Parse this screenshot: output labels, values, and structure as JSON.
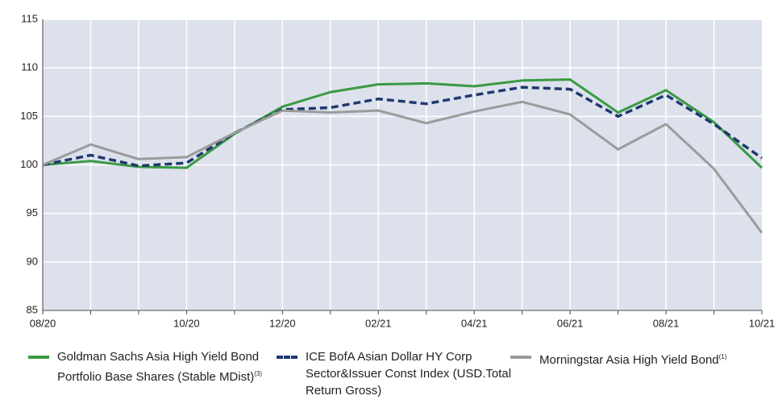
{
  "chart_data": {
    "type": "line",
    "categories": [
      "08/20",
      null,
      null,
      "10/20",
      null,
      "12/20",
      null,
      "02/21",
      null,
      "04/21",
      null,
      "06/21",
      null,
      "08/21",
      null,
      "10/21"
    ],
    "ylim": [
      85,
      115
    ],
    "yticks": [
      85,
      90,
      95,
      100,
      105,
      110,
      115
    ],
    "grid": true,
    "series": [
      {
        "name": "Goldman Sachs Asia High Yield Bond Portfolio Base Shares (Stable MDist)",
        "footnote": "(3)",
        "color": "#3a9a44",
        "dash": false,
        "values": [
          100.0,
          100.4,
          99.8,
          99.7,
          103.2,
          106.0,
          107.5,
          108.3,
          108.4,
          108.1,
          108.7,
          108.8,
          105.4,
          107.7,
          104.4,
          99.7
        ]
      },
      {
        "name": "ICE BofA Asian Dollar HY Corp Sector&Issuer Const Index (USD.Total Return Gross)",
        "color": "#1f3a6e",
        "dash": true,
        "values": [
          100.0,
          101.0,
          99.9,
          100.2,
          103.3,
          105.7,
          105.9,
          106.8,
          106.3,
          107.2,
          108.0,
          107.8,
          105.0,
          107.2,
          104.2,
          100.7
        ]
      },
      {
        "name": "Morningstar Asia High Yield Bond",
        "footnote": "(1)",
        "color": "#9b9b9b",
        "dash": false,
        "values": [
          100.0,
          102.1,
          100.6,
          100.8,
          103.3,
          105.6,
          105.4,
          105.6,
          104.3,
          105.5,
          106.5,
          105.2,
          101.6,
          104.2,
          99.6,
          93.0
        ]
      }
    ]
  }
}
